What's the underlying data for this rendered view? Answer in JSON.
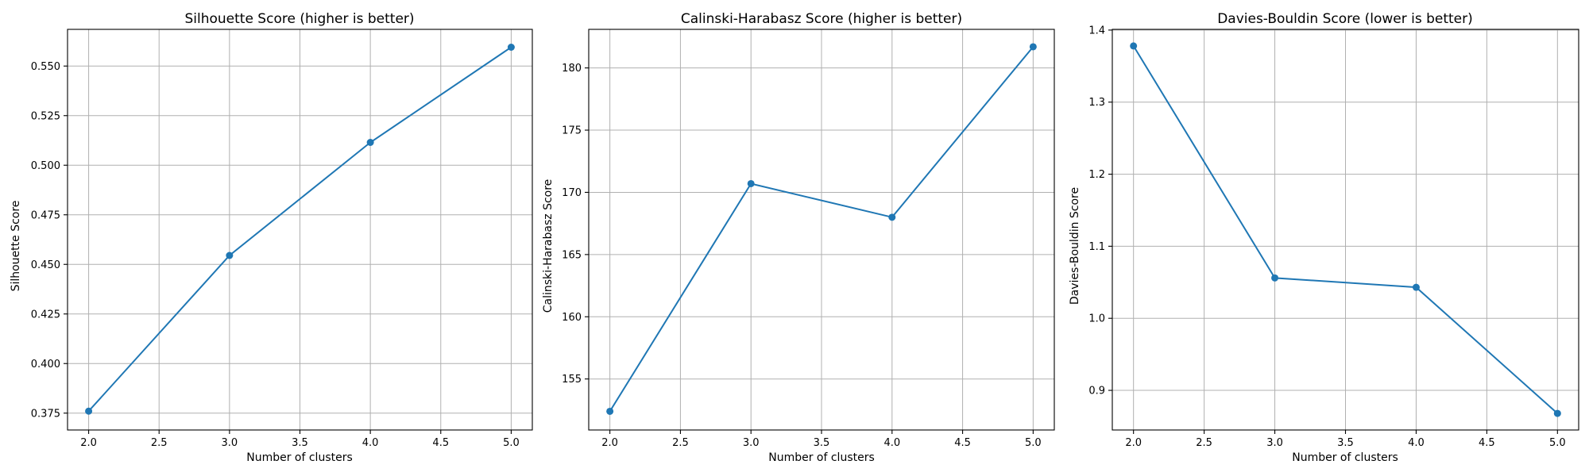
{
  "chart_data": [
    {
      "type": "line",
      "title": "Silhouette Score (higher is better)",
      "xlabel": "Number of clusters",
      "ylabel": "Silhouette Score",
      "x": [
        2,
        3,
        4,
        5
      ],
      "series": [
        {
          "values": [
            0.376,
            0.4545,
            0.5115,
            0.5595
          ]
        }
      ],
      "xlim": [
        1.85,
        5.15
      ],
      "ylim": [
        0.3665,
        0.5685
      ],
      "xticks": [
        2.0,
        2.5,
        3.0,
        3.5,
        4.0,
        4.5,
        5.0
      ],
      "xtick_labels": [
        "2.0",
        "2.5",
        "3.0",
        "3.5",
        "4.0",
        "4.5",
        "5.0"
      ],
      "yticks": [
        0.375,
        0.4,
        0.425,
        0.45,
        0.475,
        0.5,
        0.525,
        0.55
      ],
      "ytick_labels": [
        "0.375",
        "0.400",
        "0.425",
        "0.450",
        "0.475",
        "0.500",
        "0.525",
        "0.550"
      ],
      "grid": true,
      "color": "#1f77b4",
      "marker": "circle"
    },
    {
      "type": "line",
      "title": "Calinski-Harabasz Score (higher is better)",
      "xlabel": "Number of clusters",
      "ylabel": "Calinski-Harabasz Score",
      "x": [
        2,
        3,
        4,
        5
      ],
      "series": [
        {
          "values": [
            152.4,
            170.7,
            168.0,
            181.7
          ]
        }
      ],
      "xlim": [
        1.85,
        5.15
      ],
      "ylim": [
        150.9,
        183.1
      ],
      "xticks": [
        2.0,
        2.5,
        3.0,
        3.5,
        4.0,
        4.5,
        5.0
      ],
      "xtick_labels": [
        "2.0",
        "2.5",
        "3.0",
        "3.5",
        "4.0",
        "4.5",
        "5.0"
      ],
      "yticks": [
        155,
        160,
        165,
        170,
        175,
        180
      ],
      "ytick_labels": [
        "155",
        "160",
        "165",
        "170",
        "175",
        "180"
      ],
      "grid": true,
      "color": "#1f77b4",
      "marker": "circle"
    },
    {
      "type": "line",
      "title": "Davies-Bouldin Score (lower is better)",
      "xlabel": "Number of clusters",
      "ylabel": "Davies-Bouldin Score",
      "x": [
        2,
        3,
        4,
        5
      ],
      "series": [
        {
          "values": [
            1.378,
            1.056,
            1.043,
            0.868
          ]
        }
      ],
      "xlim": [
        1.85,
        5.15
      ],
      "ylim": [
        0.845,
        1.401
      ],
      "xticks": [
        2.0,
        2.5,
        3.0,
        3.5,
        4.0,
        4.5,
        5.0
      ],
      "xtick_labels": [
        "2.0",
        "2.5",
        "3.0",
        "3.5",
        "4.0",
        "4.5",
        "5.0"
      ],
      "yticks": [
        0.9,
        1.0,
        1.1,
        1.2,
        1.3,
        1.4
      ],
      "ytick_labels": [
        "0.9",
        "1.0",
        "1.1",
        "1.2",
        "1.3",
        "1.4"
      ],
      "grid": true,
      "color": "#1f77b4",
      "marker": "circle"
    }
  ]
}
